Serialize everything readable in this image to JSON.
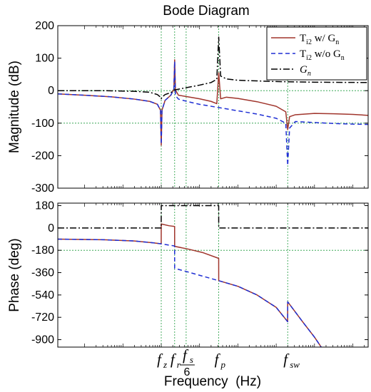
{
  "chart_data": {
    "title": "Bode Diagram",
    "xlabel": "Frequency  (Hz)",
    "x_scale": "log",
    "grid": "vertical and horizontal dotted green lines at marked frequencies and reference levels",
    "legend_position": "top-right",
    "frequency_markers": [
      {
        "id": "fz",
        "main": "f",
        "sub": "z",
        "x": 1.0
      },
      {
        "id": "fr",
        "main": "f",
        "sub": "r",
        "x": 1.35
      },
      {
        "id": "fs6",
        "main": "f",
        "sub": "s",
        "den": "6",
        "x": 1.65
      },
      {
        "id": "fp",
        "main": "f",
        "sub": "p",
        "x": 2.5
      },
      {
        "id": "fsw",
        "main": "f",
        "sub": "sw",
        "x": 4.3
      }
    ],
    "x_domain": [
      -1.7,
      6.4
    ],
    "panels": [
      {
        "id": "magnitude",
        "type": "line",
        "ylabel": "Magnitude (dB)",
        "ylim": [
          -300,
          200
        ],
        "yticks": [
          "200",
          "100",
          "0",
          "-100",
          "-200",
          "-300"
        ],
        "ytick_values": [
          200,
          100,
          0,
          -100,
          -200,
          -300
        ],
        "hgrid": [
          0,
          -100
        ],
        "series": [
          {
            "name": "T_i2 w/ G_n",
            "color": "#a0352c",
            "dash": "solid",
            "x": [
              -1.7,
              -1.0,
              -0.3,
              0.3,
              0.7,
              0.9,
              0.98,
              1.0,
              1.02,
              1.1,
              1.25,
              1.33,
              1.35,
              1.37,
              1.45,
              1.7,
              2.0,
              2.3,
              2.45,
              2.5,
              2.55,
              2.7,
              3.0,
              3.5,
              4.0,
              4.25,
              4.3,
              4.35,
              4.5,
              5.0,
              5.5,
              6.0,
              6.4
            ],
            "y": [
              -10,
              -14,
              -19,
              -26,
              -33,
              -42,
              -60,
              -168,
              -60,
              -30,
              -14,
              5,
              95,
              2,
              -14,
              -19,
              -25,
              -33,
              -40,
              55,
              -25,
              -20,
              -24,
              -34,
              -48,
              -65,
              -120,
              -80,
              -74,
              -70,
              -71,
              -73,
              -76
            ]
          },
          {
            "name": "T_i2 w/o G_n",
            "color": "#1f2fd4",
            "dash": "6,4",
            "x": [
              -1.7,
              -1.0,
              -0.3,
              0.3,
              0.7,
              0.9,
              0.98,
              1.0,
              1.02,
              1.1,
              1.25,
              1.33,
              1.35,
              1.37,
              1.45,
              1.7,
              2.0,
              2.5,
              3.0,
              3.5,
              4.0,
              4.25,
              4.3,
              4.35,
              4.5,
              5.0,
              5.5,
              6.0,
              6.4
            ],
            "y": [
              -10,
              -14,
              -19,
              -26,
              -33,
              -42,
              -60,
              -165,
              -60,
              -30,
              -14,
              5,
              90,
              -15,
              -26,
              -34,
              -42,
              -52,
              -62,
              -72,
              -85,
              -100,
              -230,
              -115,
              -95,
              -98,
              -101,
              -103,
              -104
            ]
          },
          {
            "name": "G_n",
            "color": "#000000",
            "dash": "9,3,2,3",
            "x": [
              -1.7,
              -0.5,
              0.3,
              0.7,
              0.9,
              0.98,
              1.0,
              1.02,
              1.1,
              1.25,
              1.35,
              1.6,
              2.0,
              2.3,
              2.45,
              2.5,
              2.55,
              2.7,
              3.0,
              3.5,
              4.0,
              4.5,
              5.0,
              6.4
            ],
            "y": [
              0,
              0,
              -2,
              -5,
              -12,
              -20,
              -25,
              -20,
              -12,
              -6,
              2,
              8,
              17,
              25,
              35,
              165,
              45,
              36,
              32,
              30,
              28,
              27,
              26,
              25
            ]
          }
        ]
      },
      {
        "id": "phase",
        "type": "line",
        "ylabel": "Phase (deg)",
        "ylim": [
          -960,
          200
        ],
        "yticks": [
          "180",
          "0",
          "-180",
          "-360",
          "-540",
          "-720",
          "-900"
        ],
        "ytick_values": [
          180,
          0,
          -180,
          -360,
          -540,
          -720,
          -900
        ],
        "hgrid": [
          -180
        ],
        "series": [
          {
            "name": "T_i2 w/ G_n",
            "color": "#a0352c",
            "dash": "solid",
            "x": [
              -1.7,
              -0.5,
              0.3,
              0.8,
              0.999,
              1.0,
              1.2,
              1.349,
              1.35,
              1.7,
              2.1,
              2.499,
              2.5,
              3.0,
              3.5,
              4.0,
              4.299,
              4.3,
              4.7,
              5.0,
              5.2
            ],
            "y": [
              -90,
              -95,
              -105,
              -120,
              -128,
              32,
              18,
              12,
              -148,
              -170,
              -200,
              -245,
              -425,
              -470,
              -540,
              -640,
              -755,
              -595,
              -760,
              -880,
              -985
            ]
          },
          {
            "name": "T_i2 w/o G_n",
            "color": "#1f2fd4",
            "dash": "6,4",
            "x": [
              -1.7,
              -0.5,
              0.3,
              0.8,
              1.0,
              1.2,
              1.349,
              1.35,
              1.7,
              2.1,
              2.5,
              3.0,
              3.5,
              4.0,
              4.299,
              4.3,
              4.7,
              5.0,
              5.2
            ],
            "y": [
              -90,
              -95,
              -105,
              -120,
              -128,
              -138,
              -145,
              -325,
              -355,
              -390,
              -425,
              -470,
              -540,
              -640,
              -755,
              -595,
              -760,
              -880,
              -985
            ]
          },
          {
            "name": "G_n",
            "color": "#000000",
            "dash": "9,3,2,3",
            "x": [
              -1.7,
              0.999,
              1.0,
              2.499,
              2.5,
              6.4
            ],
            "y": [
              0,
              0,
              180,
              180,
              0,
              0
            ]
          }
        ]
      }
    ]
  }
}
